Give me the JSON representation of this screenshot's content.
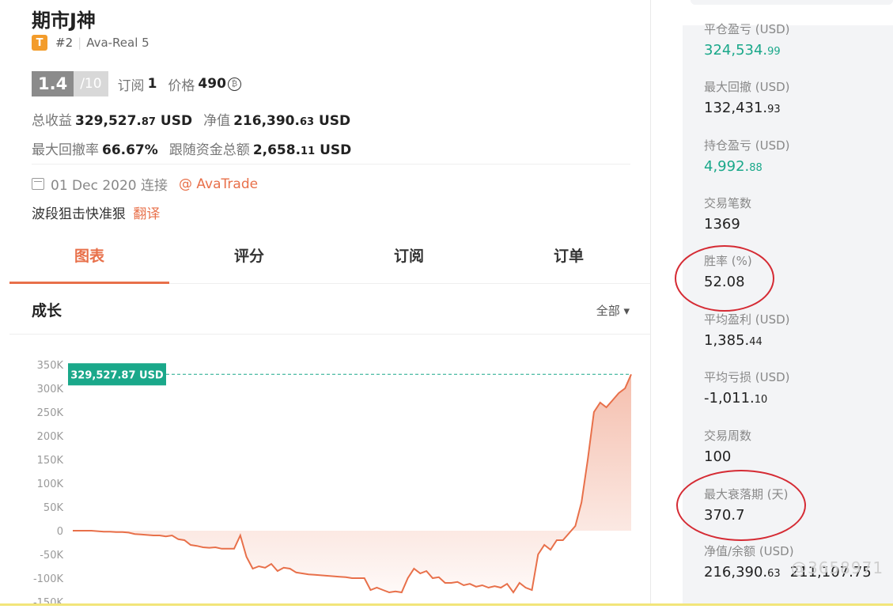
{
  "header": {
    "title": "期市J神",
    "badge": "T",
    "rank": "#2",
    "server": "Ava-Real 5",
    "score": "1.4",
    "score_max": "/10",
    "subs_label": "订阅",
    "subs_value": "1",
    "price_label": "价格",
    "price_value": "490",
    "price_icon": "₿"
  },
  "stats": {
    "total_label": "总收益",
    "total_main": "329,527.",
    "total_dec": "87",
    "total_unit": "USD",
    "equity_label": "净值",
    "equity_main": "216,390.",
    "equity_dec": "63",
    "equity_unit": "USD",
    "dd_label": "最大回撤率",
    "dd_value": "66.67%",
    "follow_label": "跟随资金总额",
    "follow_main": "2,658.",
    "follow_dec": "11",
    "follow_unit": "USD"
  },
  "info": {
    "date": "01 Dec 2020 连接",
    "broker": "@ AvaTrade",
    "desc": "波段狙击快准狠",
    "translate": "翻译"
  },
  "tabs": [
    "图表",
    "评分",
    "订阅",
    "订单"
  ],
  "section": {
    "title": "成长",
    "selector": "全部 ▾"
  },
  "chart_data": {
    "type": "area",
    "y_ticks": [
      "350K",
      "300K",
      "250K",
      "200K",
      "150K",
      "100K",
      "50K",
      "0",
      "-50K",
      "-100K",
      "-150K"
    ],
    "ylim": [
      -150000,
      350000
    ],
    "current_label": "329,527.87 USD",
    "current_value": 329527.87,
    "values": [
      0,
      0,
      0,
      0,
      -1000,
      -2000,
      -2000,
      -3000,
      -3000,
      -4000,
      -7000,
      -8000,
      -9000,
      -10000,
      -10000,
      -12000,
      -10000,
      -18000,
      -20000,
      -30000,
      -32000,
      -35000,
      -36000,
      -35000,
      -38000,
      -38000,
      -38000,
      -10000,
      -55000,
      -80000,
      -75000,
      -78000,
      -70000,
      -85000,
      -78000,
      -80000,
      -88000,
      -90000,
      -92000,
      -93000,
      -94000,
      -95000,
      -96000,
      -97000,
      -98000,
      -100000,
      -100000,
      -100000,
      -125000,
      -120000,
      -125000,
      -130000,
      -128000,
      -130000,
      -100000,
      -80000,
      -90000,
      -85000,
      -100000,
      -98000,
      -110000,
      -110000,
      -108000,
      -115000,
      -112000,
      -118000,
      -115000,
      -120000,
      -117000,
      -120000,
      -112000,
      -130000,
      -110000,
      -120000,
      -125000,
      -50000,
      -30000,
      -40000,
      -20000,
      -20000,
      -5000,
      10000,
      60000,
      150000,
      250000,
      270000,
      260000,
      275000,
      290000,
      300000,
      329527.87
    ]
  },
  "metrics": [
    {
      "label": "平仓盈亏 (USD)",
      "main": "324,534.",
      "dec": "99",
      "color": "green"
    },
    {
      "label": "最大回撤 (USD)",
      "main": "132,431.",
      "dec": "93",
      "color": ""
    },
    {
      "label": "持仓盈亏 (USD)",
      "main": "4,992.",
      "dec": "88",
      "color": "green"
    },
    {
      "label": "交易笔数",
      "main": "1369",
      "dec": "",
      "color": ""
    },
    {
      "label": "胜率 (%)",
      "main": "52.08",
      "dec": "",
      "color": ""
    },
    {
      "label": "平均盈利 (USD)",
      "main": "1,385.",
      "dec": "44",
      "color": ""
    },
    {
      "label": "平均亏损 (USD)",
      "main": "-1,011.",
      "dec": "10",
      "color": ""
    },
    {
      "label": "交易周数",
      "main": "100",
      "dec": "",
      "color": ""
    },
    {
      "label": "最大衰落期 (天)",
      "main": "370.7",
      "dec": "",
      "color": ""
    },
    {
      "label": "净值/余额 (USD)",
      "main": "216,390.",
      "dec": "63",
      "color": "",
      "extra": "211,107.75"
    }
  ],
  "watermark": "@3658971",
  "colors": {
    "accent": "#e8704a",
    "green": "#1aa88a",
    "badge": "#f39c2b",
    "annotation": "#d52b34"
  }
}
